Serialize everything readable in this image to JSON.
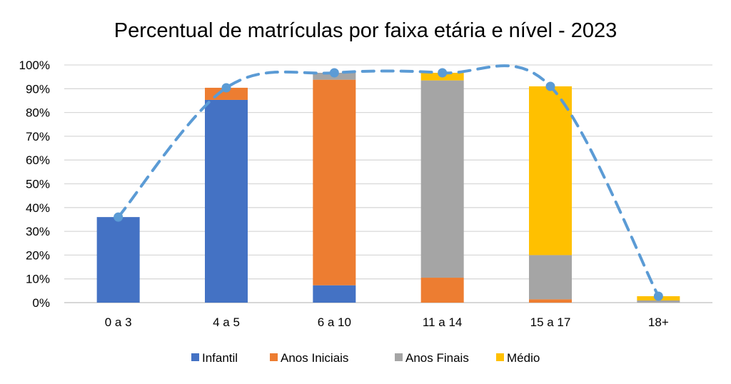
{
  "chart_data": {
    "type": "bar",
    "stacked": true,
    "title": "Percentual de matrículas por faixa etária e nível - 2023",
    "xlabel": "",
    "ylabel": "",
    "ylim": [
      0,
      100
    ],
    "yticks": [
      "0%",
      "10%",
      "20%",
      "30%",
      "40%",
      "50%",
      "60%",
      "70%",
      "80%",
      "90%",
      "100%"
    ],
    "grid": true,
    "legend_position": "bottom",
    "categories": [
      "0 a 3",
      "4 a 5",
      "6 a 10",
      "11 a 14",
      "15 a 17",
      "18+"
    ],
    "series": [
      {
        "name": "Infantil",
        "color": "#4472C4",
        "values": [
          36.0,
          85.3,
          7.3,
          0,
          0,
          0
        ]
      },
      {
        "name": "Anos Iniciais",
        "color": "#ED7D31",
        "values": [
          0,
          5.1,
          86.5,
          10.5,
          1.4,
          0
        ]
      },
      {
        "name": "Anos Finais",
        "color": "#A5A5A5",
        "values": [
          0,
          0,
          2.9,
          83.0,
          18.6,
          0.9
        ]
      },
      {
        "name": "Médio",
        "color": "#FFC000",
        "values": [
          0,
          0,
          0,
          3.2,
          71.0,
          1.8
        ]
      }
    ],
    "total_line": {
      "color": "#5B9BD5",
      "style": "dashed",
      "values": [
        36.0,
        90.4,
        96.7,
        96.7,
        91.0,
        2.7
      ]
    }
  }
}
